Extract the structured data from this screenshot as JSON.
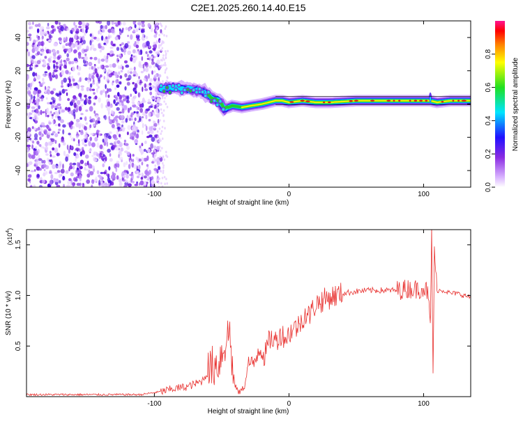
{
  "title": "C2E1.2025.260.14.40.E15",
  "colors": {
    "snr_line": "#e8302e",
    "axis": "#000000",
    "ridge": "#e01a1a"
  },
  "chart_data": [
    {
      "type": "heatmap",
      "title": "C2E1.2025.260.14.40.E15",
      "xlabel": "Height of straight line (km)",
      "ylabel": "Frequency (Hz)",
      "xlim": [
        -195,
        135
      ],
      "ylim": [
        -50,
        50
      ],
      "x_ticks": [
        "-100",
        "0",
        "100"
      ],
      "y_ticks": [
        "-40",
        "-20",
        "0",
        "20",
        "40"
      ],
      "colorbar": {
        "label": "Normalized spectral amplitude",
        "range": [
          0,
          1
        ],
        "ticks": [
          "0.0",
          "0.2",
          "0.4",
          "0.6",
          "0.8"
        ],
        "colormap": "rainbow (white-violet-blue-cyan-green-yellow-red-magenta)"
      },
      "ridge": {
        "name": "dominant frequency",
        "x": [
          -95,
          -85,
          -75,
          -65,
          -58,
          -52,
          -48,
          -42,
          -35,
          -28,
          -20,
          -15,
          -10,
          -5,
          0,
          10,
          20,
          30,
          50,
          70,
          90,
          100,
          105,
          110,
          120,
          135
        ],
        "y": [
          9,
          10,
          9,
          8,
          4,
          2,
          -3,
          -1,
          -2,
          -1,
          0,
          1,
          2,
          2,
          1,
          2,
          1,
          1,
          2,
          2,
          2,
          2,
          2,
          1,
          2,
          2
        ]
      }
    },
    {
      "type": "line",
      "xlabel": "Height of straight line (km)",
      "ylabel": "SNR (10 * v/v)",
      "y_scale_label": "(x10",
      "y_scale_exp": "4",
      "xlim": [
        -195,
        135
      ],
      "ylim": [
        0,
        1.65
      ],
      "x_ticks": [
        "-100",
        "0",
        "100"
      ],
      "y_ticks": [
        "0.5",
        "1.0",
        "1.5"
      ],
      "series": [
        {
          "x": [
            -195,
            -150,
            -110,
            -95,
            -85,
            -75,
            -65,
            -58,
            -52,
            -47,
            -44,
            -41,
            -37,
            -33,
            -30,
            -27,
            -22,
            -18,
            -14,
            -10,
            -6,
            -2,
            2,
            7,
            12,
            15,
            20,
            25,
            30,
            40,
            50,
            60,
            70,
            80,
            90,
            95,
            100,
            103,
            105,
            106,
            107,
            108,
            110,
            115,
            120,
            125,
            130,
            135
          ],
          "values": [
            0.02,
            0.02,
            0.02,
            0.05,
            0.08,
            0.1,
            0.15,
            0.28,
            0.35,
            0.55,
            0.65,
            0.12,
            0.04,
            0.1,
            0.35,
            0.28,
            0.5,
            0.4,
            0.58,
            0.55,
            0.62,
            0.58,
            0.66,
            0.7,
            0.82,
            0.8,
            0.92,
            0.95,
            0.98,
            1.02,
            1.04,
            1.05,
            1.05,
            1.05,
            1.07,
            1.06,
            1.08,
            1.03,
            0.7,
            1.65,
            0.2,
            1.4,
            1.05,
            1.05,
            1.02,
            1.02,
            1.0,
            0.98
          ]
        }
      ]
    }
  ]
}
